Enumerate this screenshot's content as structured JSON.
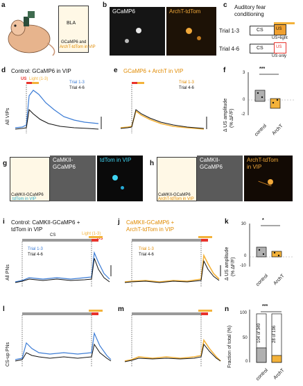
{
  "panels": {
    "a": {
      "label": "a",
      "bla": "BLA",
      "caption1": "GCaMP6 and",
      "caption2": "ArchT-tdTom in VIP"
    },
    "b": {
      "label": "b",
      "left_title": "GCaMP6",
      "right_title": "ArchT-tdTom"
    },
    "c": {
      "label": "c",
      "title1": "Auditory fear",
      "title2": "conditioning",
      "trial_a": "Trial 1-3",
      "trial_b": "Trial 4-6",
      "cs": "CS",
      "us": "US",
      "note_a": "US+light",
      "note_b": "US only"
    },
    "d": {
      "label": "d",
      "title": "Control: GCaMP6 in VIP",
      "ylabel": "All VIPs",
      "us_tag": "US",
      "light_tag": "Light (1-3)",
      "legend1": "Trial 1-3",
      "legend2": "Trial 4-6"
    },
    "e": {
      "label": "e",
      "title": "GCaMP6 + ArchT in VIP",
      "legend1": "Trial 1-3",
      "legend2": "Trial 4-6"
    },
    "f": {
      "label": "f",
      "stars": "***",
      "ylabel1": "Δ US amplitude",
      "ylabel2": "(% ΔF/F)",
      "yticks": [
        "3",
        "2",
        "1",
        "0",
        "-1",
        "-2"
      ],
      "xcat1": "control",
      "xcat2": "ArchT"
    },
    "g": {
      "label": "g",
      "cap1": "CaMKII-GCaMP6",
      "cap2": "tdTom in VIP",
      "img1": "CaMKII-",
      "img1b": "GCaMP6",
      "img2": "tdTom in VIP"
    },
    "h": {
      "label": "h",
      "cap1": "CaMKII-GCaMP6",
      "cap2": "ArchT-tdTom in VIP",
      "img1": "CaMKII-",
      "img1b": "GCaMP6",
      "img2": "ArchT-tdTom",
      "img2b": "in VIP"
    },
    "i": {
      "label": "i",
      "title1": "Control: CaMKII-GCaMP6 +",
      "title2": "tdTom in VIP",
      "ylabel": "All PNs",
      "cs": "CS",
      "light_tag": "Light (1-3)",
      "us_tag": "US",
      "legend1": "Trial 1-3",
      "legend2": "Trial 4-6"
    },
    "j": {
      "label": "j",
      "title1": "CaMKII-GCaMP6 +",
      "title2": "ArchT-tdTom in VIP",
      "legend1": "Trial 1-3",
      "legend2": "Trial 4-6"
    },
    "k": {
      "label": "k",
      "stars": "*",
      "ylabel1": "Δ US amplitude",
      "ylabel2": "(% ΔF/F)",
      "yticks": [
        "30",
        "20",
        "10",
        "0",
        "-10"
      ],
      "xcat1": "control",
      "xcat2": "ArchT"
    },
    "l": {
      "label": "l",
      "ylabel": "CS-up PNs"
    },
    "m": {
      "label": "m"
    },
    "n": {
      "label": "n",
      "stars": "***",
      "ylabel": "Fraction of total (%)",
      "yticks": [
        "100",
        "50",
        "0"
      ],
      "bar1": "104 of 349",
      "bar2": "28 of 196",
      "xcat1": "control",
      "xcat2": "ArchT"
    }
  },
  "colors": {
    "blue": "#3a7bd5",
    "black": "#111111",
    "orange": "#f3b23a",
    "red": "#e8322b",
    "gray": "#9a9a9a",
    "us_orange": "#f0a030"
  },
  "chart_data": [
    {
      "panel": "f",
      "type": "bar",
      "categories": [
        "control",
        "ArchT"
      ],
      "values": [
        0.8,
        -0.3
      ],
      "ylim": [
        -2,
        3
      ]
    },
    {
      "panel": "k",
      "type": "bar",
      "categories": [
        "control",
        "ArchT"
      ],
      "values": [
        9,
        5
      ],
      "ylim": [
        -10,
        30
      ]
    },
    {
      "panel": "n",
      "type": "bar",
      "categories": [
        "control",
        "ArchT"
      ],
      "values": [
        30,
        14
      ],
      "ylim": [
        0,
        100
      ]
    }
  ]
}
